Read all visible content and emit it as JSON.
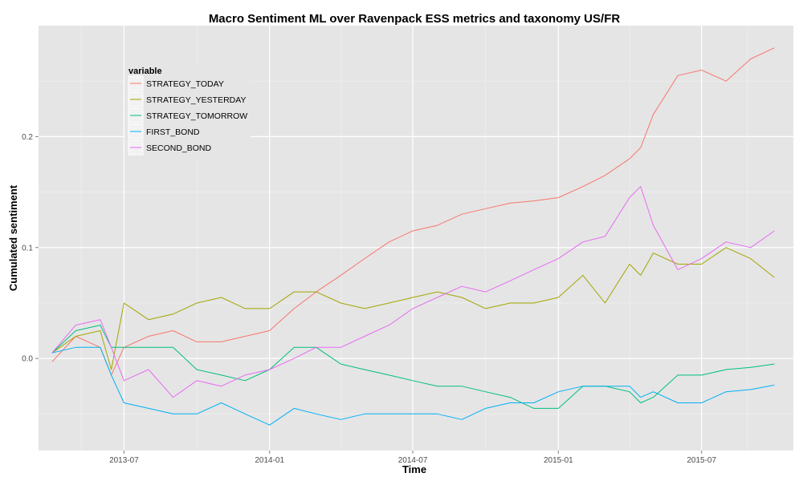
{
  "chart_data": {
    "type": "line",
    "title": "Macro Sentiment ML over Ravenpack ESS metrics and taxonomy US/FR",
    "xlabel": "Time",
    "ylabel": "Cumulated sentiment",
    "x_ticks": [
      "2013-07",
      "2014-01",
      "2014-07",
      "2015-01",
      "2015-07"
    ],
    "y_ticks": [
      "0.0",
      "0.1",
      "0.2"
    ],
    "xlim": [
      "2013-03-15",
      "2015-10-25"
    ],
    "ylim": [
      -0.083,
      0.3
    ],
    "grid": true,
    "legend_title": "variable",
    "legend_position": "top-left",
    "x": [
      "2013-04-01",
      "2013-05-01",
      "2013-06-01",
      "2013-06-15",
      "2013-07-01",
      "2013-08-01",
      "2013-09-01",
      "2013-10-01",
      "2013-11-01",
      "2013-12-01",
      "2014-01-01",
      "2014-02-01",
      "2014-03-01",
      "2014-04-01",
      "2014-05-01",
      "2014-06-01",
      "2014-07-01",
      "2014-08-01",
      "2014-09-01",
      "2014-10-01",
      "2014-11-01",
      "2014-12-01",
      "2015-01-01",
      "2015-02-01",
      "2015-03-01",
      "2015-04-01",
      "2015-04-15",
      "2015-05-01",
      "2015-06-01",
      "2015-07-01",
      "2015-08-01",
      "2015-09-01",
      "2015-10-01"
    ],
    "series": [
      {
        "name": "STRATEGY_TODAY",
        "color": "#F8766D",
        "values": [
          -0.003,
          0.02,
          0.01,
          -0.015,
          0.01,
          0.02,
          0.025,
          0.015,
          0.015,
          0.02,
          0.025,
          0.045,
          0.06,
          0.075,
          0.09,
          0.105,
          0.115,
          0.12,
          0.13,
          0.135,
          0.14,
          0.142,
          0.145,
          0.155,
          0.165,
          0.18,
          0.19,
          0.22,
          0.255,
          0.26,
          0.25,
          0.27,
          0.28
        ]
      },
      {
        "name": "STRATEGY_YESTERDAY",
        "color": "#A3A500",
        "values": [
          0.005,
          0.02,
          0.025,
          -0.01,
          0.05,
          0.035,
          0.04,
          0.05,
          0.055,
          0.045,
          0.045,
          0.06,
          0.06,
          0.05,
          0.045,
          0.05,
          0.055,
          0.06,
          0.055,
          0.045,
          0.05,
          0.05,
          0.055,
          0.075,
          0.05,
          0.085,
          0.075,
          0.095,
          0.085,
          0.085,
          0.1,
          0.09,
          0.073
        ]
      },
      {
        "name": "STRATEGY_TOMORROW",
        "color": "#00BF7D",
        "values": [
          0.005,
          0.025,
          0.03,
          0.01,
          0.01,
          0.01,
          0.01,
          -0.01,
          -0.015,
          -0.02,
          -0.01,
          0.01,
          0.01,
          -0.005,
          -0.01,
          -0.015,
          -0.02,
          -0.025,
          -0.025,
          -0.03,
          -0.035,
          -0.045,
          -0.045,
          -0.025,
          -0.025,
          -0.03,
          -0.04,
          -0.035,
          -0.015,
          -0.015,
          -0.01,
          -0.008,
          -0.005
        ]
      },
      {
        "name": "FIRST_BOND",
        "color": "#00B0F6",
        "values": [
          0.005,
          0.01,
          0.01,
          -0.015,
          -0.04,
          -0.045,
          -0.05,
          -0.05,
          -0.04,
          -0.05,
          -0.06,
          -0.045,
          -0.05,
          -0.055,
          -0.05,
          -0.05,
          -0.05,
          -0.05,
          -0.055,
          -0.045,
          -0.04,
          -0.04,
          -0.03,
          -0.025,
          -0.025,
          -0.025,
          -0.035,
          -0.03,
          -0.04,
          -0.04,
          -0.03,
          -0.028,
          -0.024
        ]
      },
      {
        "name": "SECOND_BOND",
        "color": "#E76BF3",
        "values": [
          0.005,
          0.03,
          0.035,
          0.01,
          -0.02,
          -0.01,
          -0.035,
          -0.02,
          -0.025,
          -0.015,
          -0.01,
          0.0,
          0.01,
          0.01,
          0.02,
          0.03,
          0.045,
          0.055,
          0.065,
          0.06,
          0.07,
          0.08,
          0.09,
          0.105,
          0.11,
          0.145,
          0.155,
          0.12,
          0.08,
          0.09,
          0.105,
          0.1,
          0.115
        ]
      }
    ]
  }
}
